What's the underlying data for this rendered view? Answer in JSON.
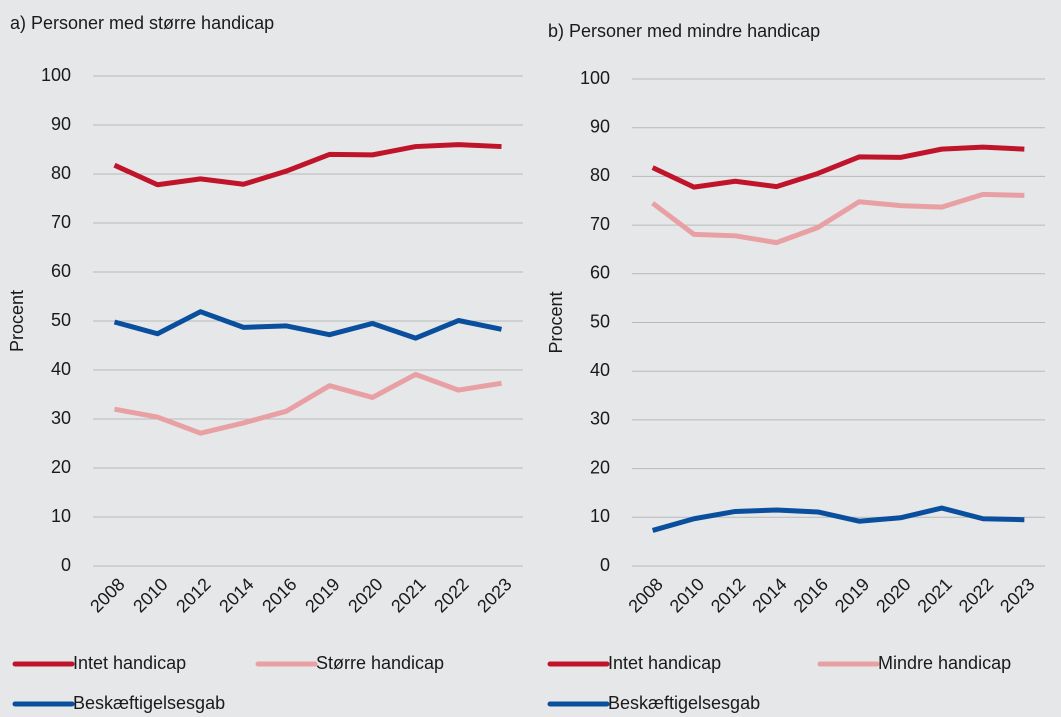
{
  "chart_data": [
    {
      "type": "line",
      "title": "a) Personer med større handicap",
      "ylabel": "Procent",
      "categories": [
        "2008",
        "2010",
        "2012",
        "2014",
        "2016",
        "2019",
        "2020",
        "2021",
        "2022",
        "2023"
      ],
      "series": [
        {
          "name": "Intet handicap",
          "color": "#c0142b",
          "values": [
            81.8,
            77.8,
            79,
            77.9,
            80.6,
            84,
            83.9,
            85.6,
            86,
            85.6
          ]
        },
        {
          "name": "Større handicap",
          "color": "#e8a0a4",
          "values": [
            32,
            30.4,
            27.1,
            29.2,
            31.6,
            36.8,
            34.4,
            39.1,
            35.9,
            37.3
          ]
        },
        {
          "name": "Beskæftigelsesgab",
          "color": "#0a4f9e",
          "values": [
            49.8,
            47.4,
            51.9,
            48.7,
            49,
            47.2,
            49.5,
            46.5,
            50.1,
            48.3
          ]
        }
      ],
      "ylim": [
        0,
        100
      ],
      "yticks": [
        0,
        10,
        20,
        30,
        40,
        50,
        60,
        70,
        80,
        90,
        100
      ],
      "grid": true
    },
    {
      "type": "line",
      "title": "b) Personer med mindre handicap",
      "ylabel": "Procent",
      "categories": [
        "2008",
        "2010",
        "2012",
        "2014",
        "2016",
        "2019",
        "2020",
        "2021",
        "2022",
        "2023"
      ],
      "series": [
        {
          "name": "Intet handicap",
          "color": "#c0142b",
          "values": [
            81.8,
            77.8,
            79,
            77.9,
            80.6,
            84,
            83.9,
            85.6,
            86,
            85.6
          ]
        },
        {
          "name": "Mindre handicap",
          "color": "#e8a0a4",
          "values": [
            74.5,
            68.1,
            67.8,
            66.4,
            69.5,
            74.8,
            74,
            73.7,
            76.3,
            76.1
          ]
        },
        {
          "name": "Beskæftigelsesgab",
          "color": "#0a4f9e",
          "values": [
            7.3,
            9.7,
            11.2,
            11.5,
            11.1,
            9.2,
            9.9,
            11.9,
            9.7,
            9.5
          ]
        }
      ],
      "ylim": [
        0,
        100
      ],
      "yticks": [
        0,
        10,
        20,
        30,
        40,
        50,
        60,
        70,
        80,
        90,
        100
      ],
      "grid": true
    }
  ]
}
